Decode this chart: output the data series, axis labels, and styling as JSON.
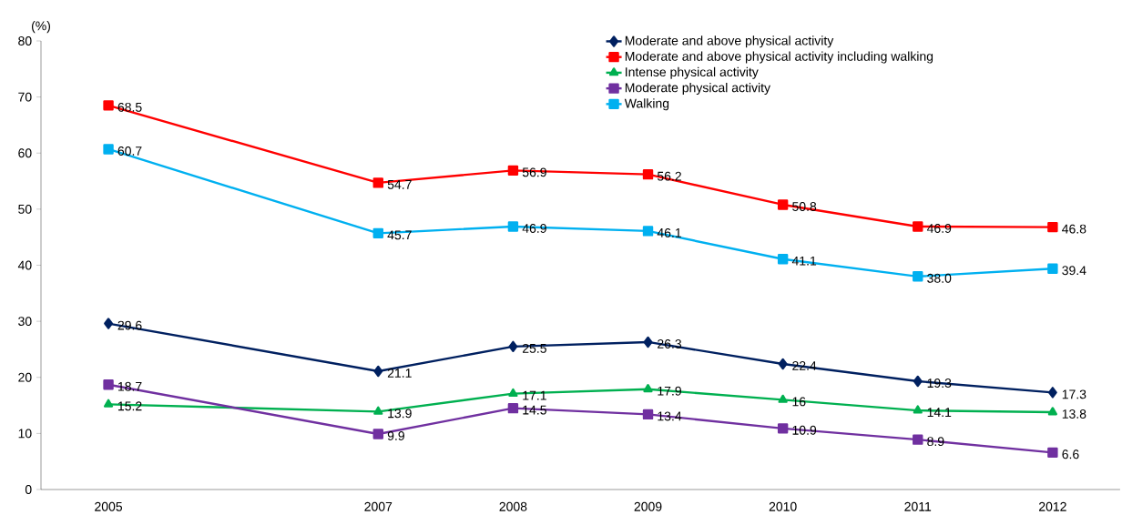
{
  "chart_data": {
    "type": "line",
    "ylabel": "(%)",
    "x": [
      2005,
      2007,
      2008,
      2009,
      2010,
      2011,
      2012
    ],
    "xlim": [
      2004.5,
      2012.5
    ],
    "xticks": [
      2005,
      2007,
      2008,
      2009,
      2010,
      2011,
      2012
    ],
    "ylim": [
      0,
      80
    ],
    "yticks": [
      0,
      10,
      20,
      30,
      40,
      50,
      60,
      70,
      80
    ],
    "grid": false,
    "legend": "top right",
    "series": [
      {
        "name": "Moderate and above physical activity",
        "color": "#002060",
        "marker": "diamond",
        "values": [
          29.6,
          21.1,
          25.5,
          26.3,
          22.4,
          19.3,
          17.3
        ],
        "value_labels": [
          "29.6",
          "21.1",
          "25.5",
          "26.3",
          "22.4",
          "19.3",
          "17.3"
        ]
      },
      {
        "name": "Moderate and above physical activity including walking",
        "color": "#ff0000",
        "marker": "square",
        "values": [
          68.5,
          54.7,
          56.9,
          56.2,
          50.8,
          46.9,
          46.8
        ],
        "value_labels": [
          "68.5",
          "54.7",
          "56.9",
          "56.2",
          "50.8",
          "46.9",
          "46.8"
        ]
      },
      {
        "name": "Intense physical activity",
        "color": "#00b050",
        "marker": "triangle",
        "values": [
          15.2,
          13.9,
          17.1,
          17.9,
          16,
          14.1,
          13.8
        ],
        "value_labels": [
          "15.2",
          "13.9",
          "17.1",
          "17.9",
          "16",
          "14.1",
          "13.8"
        ]
      },
      {
        "name": "Moderate physical activity",
        "color": "#7030a0",
        "marker": "square",
        "values": [
          18.7,
          9.9,
          14.5,
          13.4,
          10.9,
          8.9,
          6.6
        ],
        "value_labels": [
          "18.7",
          "9.9",
          "14.5",
          "13.4",
          "10.9",
          "8.9",
          "6.6"
        ]
      },
      {
        "name": "Walking",
        "color": "#00b0f0",
        "marker": "square",
        "values": [
          60.7,
          45.7,
          46.9,
          46.1,
          41.1,
          38.0,
          39.4
        ],
        "value_labels": [
          "60.7",
          "45.7",
          "46.9",
          "46.1",
          "41.1",
          "38.0",
          "39.4"
        ]
      }
    ]
  }
}
